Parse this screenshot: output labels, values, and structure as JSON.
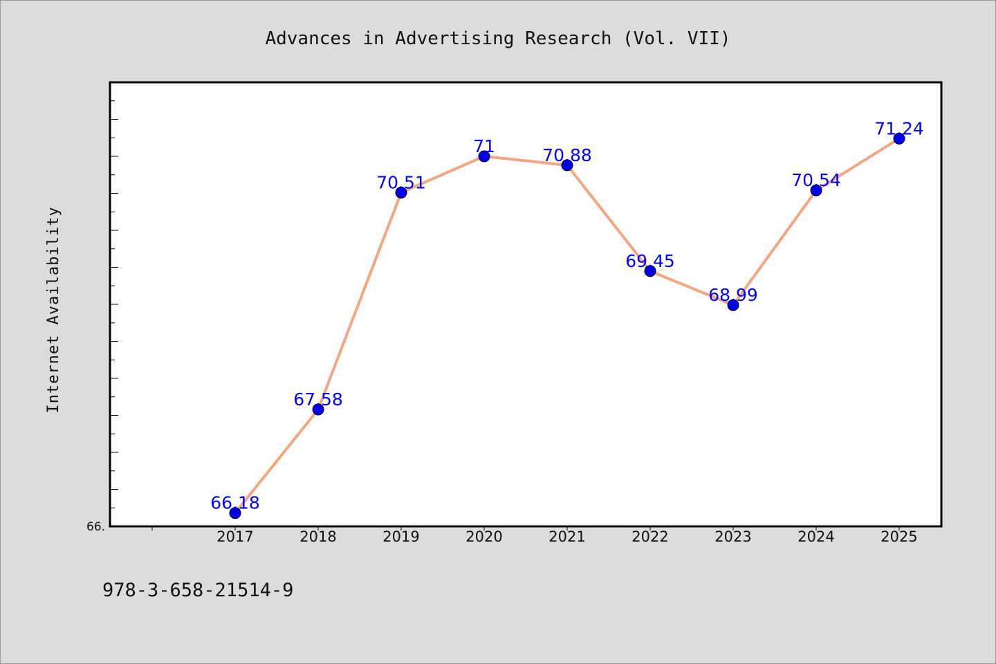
{
  "chart_data": {
    "type": "line",
    "title": "Advances in Advertising Research (Vol. VII)",
    "xlabel": "",
    "ylabel": "Internet Availability",
    "x": [
      "2017",
      "2018",
      "2019",
      "2020",
      "2021",
      "2022",
      "2023",
      "2024",
      "2025"
    ],
    "series": [
      {
        "values": [
          66.18,
          67.58,
          70.51,
          71,
          70.88,
          69.45,
          68.99,
          70.54,
          71.24
        ]
      }
    ],
    "data_labels": [
      "66.18",
      "67.58",
      "70.51",
      "71",
      "70.88",
      "69.45",
      "68.99",
      "70.54",
      "71.24"
    ],
    "ylim": [
      66,
      72
    ],
    "ytick_label": "66.",
    "grid": false,
    "line_color": "#f4a582",
    "marker_color": "#0000ee",
    "label_color": "#0000ff"
  },
  "footer": {
    "isbn": "978-3-658-21514-9"
  }
}
